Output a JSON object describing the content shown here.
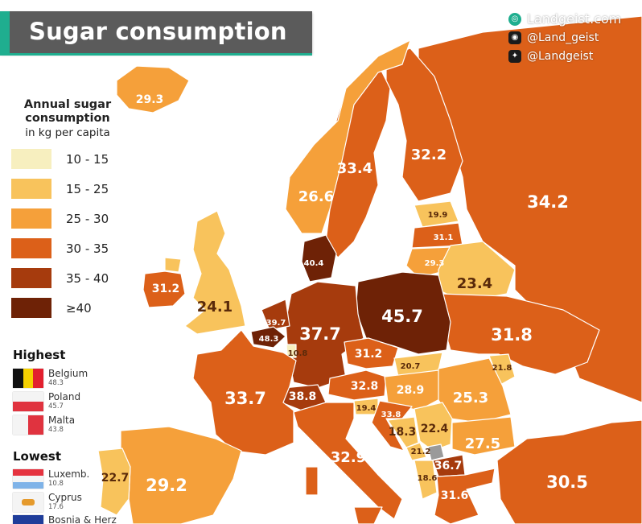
{
  "title": "Sugar consumption",
  "brand": {
    "site": "Landgeist.com",
    "instagram": "@Land_geist",
    "twitter": "@Landgeist"
  },
  "legend": {
    "title": "Annual sugar consumption",
    "subtitle": "in kg per capita",
    "classes": [
      {
        "label": "10 - 15",
        "color": "#f7efbf"
      },
      {
        "label": "15 - 25",
        "color": "#f8c35c"
      },
      {
        "label": "25 - 30",
        "color": "#f5a03a"
      },
      {
        "label": "30 - 35",
        "color": "#dc6019"
      },
      {
        "label": "35 - 40",
        "color": "#a63b0d"
      },
      {
        "label": "≥40",
        "color": "#6e2206"
      }
    ]
  },
  "highest": {
    "heading": "Highest",
    "items": [
      {
        "name": "Belgium",
        "value": "48.3"
      },
      {
        "name": "Poland",
        "value": "45.7"
      },
      {
        "name": "Malta",
        "value": "43.8"
      }
    ]
  },
  "lowest": {
    "heading": "Lowest",
    "items": [
      {
        "name": "Luxemb.",
        "value": "10.8"
      },
      {
        "name": "Cyprus",
        "value": "17.6"
      },
      {
        "name": "Bosnia & Herz",
        "value": ""
      }
    ]
  },
  "colors": {
    "background": "#ffffff",
    "accent": "#1fae8f",
    "title_bar": "#5b5b5b"
  },
  "map_data": [
    {
      "id": "iceland",
      "value": "29.3",
      "class": 2
    },
    {
      "id": "norway",
      "value": "26.6",
      "class": 2
    },
    {
      "id": "sweden",
      "value": "33.4",
      "class": 3
    },
    {
      "id": "finland",
      "value": "32.2",
      "class": 3
    },
    {
      "id": "russia",
      "value": "34.2",
      "class": 3
    },
    {
      "id": "estonia",
      "value": "19.9",
      "class": 1
    },
    {
      "id": "latvia",
      "value": "31.1",
      "class": 3
    },
    {
      "id": "lithuania",
      "value": "29.3",
      "class": 2
    },
    {
      "id": "belarus",
      "value": "23.4",
      "class": 1
    },
    {
      "id": "denmark",
      "value": "40.4",
      "class": 5
    },
    {
      "id": "ireland",
      "value": "31.2",
      "class": 3
    },
    {
      "id": "uk",
      "value": "24.1",
      "class": 1
    },
    {
      "id": "netherlands",
      "value": "39.7",
      "class": 4
    },
    {
      "id": "belgium",
      "value": "48.3",
      "class": 5
    },
    {
      "id": "luxembourg",
      "value": "10.8",
      "class": 0
    },
    {
      "id": "germany",
      "value": "37.7",
      "class": 4
    },
    {
      "id": "poland",
      "value": "45.7",
      "class": 5
    },
    {
      "id": "czechia",
      "value": "31.2",
      "class": 3
    },
    {
      "id": "ukraine",
      "value": "31.8",
      "class": 3
    },
    {
      "id": "slovakia",
      "value": "20.7",
      "class": 1
    },
    {
      "id": "moldova",
      "value": "21.8",
      "class": 1
    },
    {
      "id": "france",
      "value": "33.7",
      "class": 3
    },
    {
      "id": "switzerland",
      "value": "38.8",
      "class": 4
    },
    {
      "id": "austria",
      "value": "32.8",
      "class": 3
    },
    {
      "id": "hungary",
      "value": "28.9",
      "class": 2
    },
    {
      "id": "romania",
      "value": "25.3",
      "class": 2
    },
    {
      "id": "slovenia",
      "value": "19.4",
      "class": 1
    },
    {
      "id": "croatia",
      "value": "33.8",
      "class": 3
    },
    {
      "id": "bosnia",
      "value": "18.3",
      "class": 1
    },
    {
      "id": "serbia",
      "value": "22.4",
      "class": 1
    },
    {
      "id": "montenegro",
      "value": "21.2",
      "class": 1
    },
    {
      "id": "bulgaria",
      "value": "27.5",
      "class": 2
    },
    {
      "id": "north_macedonia",
      "value": "36.7",
      "class": 4
    },
    {
      "id": "albania",
      "value": "18.6",
      "class": 1
    },
    {
      "id": "greece",
      "value": "31.6",
      "class": 3
    },
    {
      "id": "italy",
      "value": "32.9",
      "class": 3
    },
    {
      "id": "portugal",
      "value": "22.7",
      "class": 1
    },
    {
      "id": "spain",
      "value": "29.2",
      "class": 2
    },
    {
      "id": "turkey",
      "value": "30.5",
      "class": 3
    }
  ]
}
